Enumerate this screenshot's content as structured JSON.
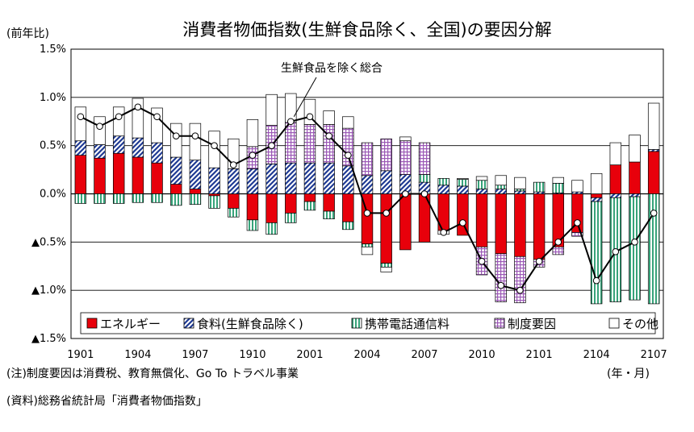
{
  "chart_data": {
    "type": "bar",
    "title": "消費者物価指数(生鮮食品除く、全国)の要因分解",
    "ylabel": "(前年比)",
    "xlabel": "(年・月)",
    "ylim": [
      -1.5,
      1.5
    ],
    "y_ticks": [
      "1.5%",
      "1.0%",
      "0.5%",
      "0.0%",
      "▲0.5%",
      "▲1.0%",
      "▲1.5%"
    ],
    "x_tick_labels": [
      "1901",
      "1904",
      "1907",
      "1910",
      "2001",
      "2004",
      "2007",
      "2010",
      "2101",
      "2104",
      "2107"
    ],
    "categories": [
      "1901",
      "1902",
      "1903",
      "1904",
      "1905",
      "1906",
      "1907",
      "1908",
      "1909",
      "1910",
      "1911",
      "1912",
      "2001",
      "2002",
      "2003",
      "2004",
      "2005",
      "2006",
      "2007",
      "2008",
      "2009",
      "2010",
      "2011",
      "2012",
      "2101",
      "2102",
      "2103",
      "2104",
      "2105",
      "2106",
      "2107"
    ],
    "series": [
      {
        "name": "エネルギー",
        "color": "#ff0000",
        "values": [
          0.4,
          0.37,
          0.42,
          0.38,
          0.32,
          0.1,
          0.05,
          -0.02,
          -0.15,
          -0.27,
          -0.3,
          -0.2,
          -0.08,
          -0.18,
          -0.29,
          -0.52,
          -0.72,
          -0.58,
          -0.5,
          -0.38,
          -0.43,
          -0.55,
          -0.62,
          -0.65,
          -0.68,
          -0.55,
          -0.4,
          -0.04,
          0.3,
          0.33,
          0.44
        ]
      },
      {
        "name": "食料(生鮮食品除く)",
        "color": "#1f3a93",
        "values": [
          0.15,
          0.14,
          0.18,
          0.2,
          0.21,
          0.28,
          0.3,
          0.27,
          0.26,
          0.26,
          0.31,
          0.32,
          0.32,
          0.32,
          0.29,
          0.19,
          0.24,
          0.2,
          0.12,
          0.09,
          0.08,
          0.05,
          0.05,
          0.03,
          0.02,
          0.01,
          0.02,
          -0.04,
          -0.04,
          -0.03,
          0.02
        ]
      },
      {
        "name": "携帯電話通信料",
        "color": "#37a37a",
        "values": [
          -0.1,
          -0.1,
          -0.1,
          -0.09,
          -0.09,
          -0.12,
          -0.11,
          -0.13,
          -0.09,
          -0.11,
          -0.12,
          -0.1,
          -0.09,
          -0.08,
          -0.08,
          -0.03,
          -0.04,
          0.0,
          0.08,
          0.07,
          0.07,
          0.09,
          0.04,
          0.02,
          0.1,
          0.1,
          0.0,
          -1.06,
          -1.08,
          -1.07,
          -1.14
        ]
      },
      {
        "name": "制度要因",
        "color": "#9b59b6",
        "values": [
          0.0,
          0.0,
          0.0,
          0.0,
          0.0,
          0.0,
          0.0,
          0.0,
          0.0,
          0.23,
          0.4,
          0.42,
          0.4,
          0.4,
          0.39,
          0.34,
          0.33,
          0.35,
          0.33,
          0.0,
          0.0,
          -0.29,
          -0.5,
          -0.48,
          -0.08,
          -0.08,
          -0.04,
          0.0,
          0.0,
          0.0,
          0.0
        ]
      },
      {
        "name": "その他",
        "color": "#ffffff",
        "values": [
          0.35,
          0.29,
          0.3,
          0.41,
          0.36,
          0.35,
          0.38,
          0.38,
          0.31,
          0.28,
          0.32,
          0.3,
          0.26,
          0.14,
          0.12,
          -0.08,
          -0.05,
          0.04,
          0.0,
          -0.04,
          0.01,
          0.04,
          0.1,
          0.12,
          0.0,
          0.06,
          0.12,
          0.21,
          0.23,
          0.28,
          0.48
        ]
      }
    ],
    "line": {
      "name": "生鮮食品を除く総合",
      "values": [
        0.8,
        0.7,
        0.8,
        0.9,
        0.8,
        0.6,
        0.6,
        0.5,
        0.3,
        0.4,
        0.5,
        0.75,
        0.8,
        0.6,
        0.4,
        -0.2,
        -0.2,
        0.0,
        0.0,
        -0.4,
        -0.3,
        -0.7,
        -0.95,
        -1.0,
        -0.7,
        -0.5,
        -0.3,
        -0.9,
        -0.6,
        -0.5,
        -0.2
      ]
    },
    "legend_position": "bottom-inside",
    "grid": true
  },
  "notes": {
    "note1": "(注)制度要因は消費税、教育無償化、Go To トラベル事業",
    "note2": "(資料)総務省統計局「消費者物価指数」"
  }
}
